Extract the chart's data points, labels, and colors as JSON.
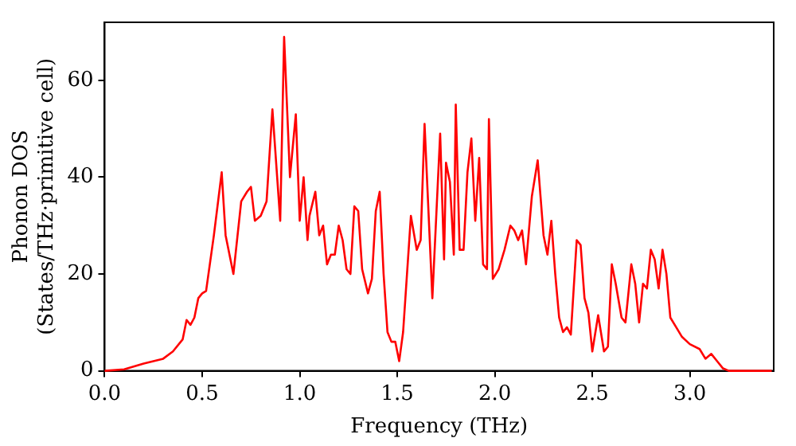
{
  "chart_data": {
    "type": "line",
    "xlabel": "Frequency (THz)",
    "ylabel": "Phonon DOS\n(States/THz·primitive cell)",
    "x": [
      0,
      0.1,
      0.2,
      0.3,
      0.35,
      0.4,
      0.42,
      0.44,
      0.46,
      0.48,
      0.5,
      0.52,
      0.56,
      0.6,
      0.62,
      0.66,
      0.7,
      0.73,
      0.75,
      0.77,
      0.8,
      0.83,
      0.86,
      0.9,
      0.92,
      0.95,
      0.98,
      1.0,
      1.02,
      1.04,
      1.05,
      1.08,
      1.1,
      1.12,
      1.14,
      1.16,
      1.18,
      1.2,
      1.22,
      1.24,
      1.26,
      1.28,
      1.3,
      1.32,
      1.35,
      1.37,
      1.39,
      1.41,
      1.43,
      1.45,
      1.47,
      1.49,
      1.51,
      1.53,
      1.57,
      1.6,
      1.62,
      1.64,
      1.68,
      1.72,
      1.74,
      1.75,
      1.77,
      1.79,
      1.8,
      1.82,
      1.84,
      1.86,
      1.88,
      1.9,
      1.92,
      1.94,
      1.96,
      1.97,
      1.99,
      2.02,
      2.05,
      2.08,
      2.1,
      2.12,
      2.14,
      2.16,
      2.19,
      2.22,
      2.25,
      2.27,
      2.29,
      2.31,
      2.33,
      2.35,
      2.37,
      2.39,
      2.42,
      2.44,
      2.46,
      2.48,
      2.5,
      2.53,
      2.56,
      2.58,
      2.6,
      2.62,
      2.65,
      2.67,
      2.7,
      2.72,
      2.74,
      2.76,
      2.78,
      2.8,
      2.82,
      2.84,
      2.86,
      2.88,
      2.9,
      2.93,
      2.96,
      3.0,
      3.05,
      3.08,
      3.11,
      3.14,
      3.17,
      3.2,
      3.42
    ],
    "series": [
      {
        "color": "#ff0000",
        "values": [
          0,
          0.3,
          1.5,
          2.5,
          4,
          6.5,
          10.5,
          9.5,
          11,
          15,
          16,
          16.5,
          28,
          41,
          28,
          20,
          35,
          37,
          38,
          31,
          32,
          35,
          54,
          31,
          69,
          40,
          53,
          31,
          40,
          27,
          32,
          37,
          28,
          30,
          22,
          24,
          24,
          30,
          27,
          21,
          20,
          34,
          33,
          21,
          16,
          19,
          33,
          37,
          20,
          8,
          6,
          6,
          2,
          8,
          32,
          25,
          27,
          51,
          15,
          49,
          23,
          43,
          39,
          24,
          55,
          25,
          25,
          41,
          48,
          31,
          44,
          22,
          21,
          52,
          19,
          21,
          25,
          30,
          29,
          27,
          29,
          22,
          36,
          43.5,
          28,
          24,
          31,
          20,
          11,
          8,
          9,
          7.5,
          27,
          26,
          15,
          12,
          4,
          11.5,
          4,
          5,
          22,
          18,
          11,
          10,
          22,
          18,
          10,
          18,
          17,
          25,
          23,
          17,
          25,
          20,
          11,
          9,
          7,
          5.5,
          4.5,
          2.5,
          3.5,
          2,
          0.5,
          0,
          0
        ]
      }
    ],
    "xlim": [
      0,
      3.43
    ],
    "ylim": [
      0,
      72
    ],
    "xticks": [
      {
        "value": 0,
        "label": "0.0"
      },
      {
        "value": 0.5,
        "label": "0.5"
      },
      {
        "value": 1,
        "label": "1.0"
      },
      {
        "value": 1.5,
        "label": "1.5"
      },
      {
        "value": 2,
        "label": "2.0"
      },
      {
        "value": 2.5,
        "label": "2.5"
      },
      {
        "value": 3,
        "label": "3.0"
      }
    ],
    "yticks": [
      0,
      20,
      40,
      60
    ],
    "grid": false,
    "legend": false,
    "marker": "none",
    "line_style": "solid"
  }
}
